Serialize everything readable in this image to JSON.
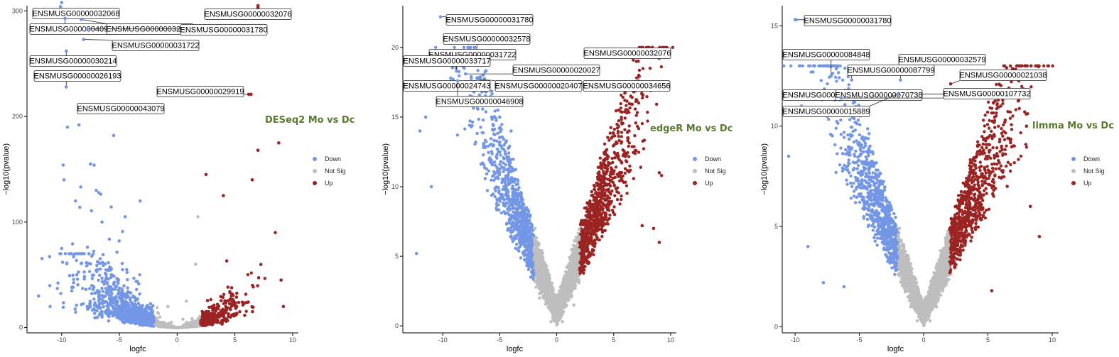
{
  "colors": {
    "Down": "#7397e6",
    "Not Sig": "#bebebe",
    "Up": "#9b2423",
    "title": "#5a7a30"
  },
  "chart_data": [
    {
      "type": "scatter",
      "title": "DESeq2 Mo vs Dc",
      "xlabel": "logfc",
      "ylabel": "−log10(pvalue)",
      "xlim": [
        -13,
        10.5
      ],
      "ylim": [
        -5,
        305
      ],
      "xticks": [
        -10,
        -5,
        0,
        5,
        10
      ],
      "yticks": [
        0,
        100,
        200,
        300
      ],
      "legend": {
        "position": "right",
        "entries": [
          "Down",
          "Not Sig",
          "Up"
        ]
      },
      "grid": false,
      "threshold": 2,
      "points": {
        "Down": [
          [
            -10,
            308
          ],
          [
            -9.5,
            190
          ],
          [
            -8.5,
            192
          ],
          [
            -9.8,
            140
          ],
          [
            -8.8,
            120
          ],
          [
            -7.5,
            155
          ],
          [
            -7,
            130
          ],
          [
            -5.5,
            182
          ],
          [
            -4.6,
            210
          ],
          [
            -4.5,
            105
          ],
          [
            -3.2,
            120
          ],
          [
            -6.5,
            100
          ],
          [
            -10,
            75
          ],
          [
            -12,
            30
          ],
          [
            -11,
            20
          ]
        ],
        "Not Sig": [
          [
            -0.8,
            20
          ],
          [
            0.8,
            25
          ],
          [
            -1.5,
            10
          ],
          [
            1.6,
            60
          ],
          [
            1.8,
            105
          ],
          [
            -0.5,
            5
          ],
          [
            0.5,
            8
          ]
        ],
        "Up": [
          [
            7,
            305
          ],
          [
            6.4,
            221
          ],
          [
            8.8,
            175
          ],
          [
            7,
            168
          ],
          [
            6.5,
            140
          ],
          [
            2.5,
            145
          ],
          [
            4,
            125
          ],
          [
            8.5,
            90
          ],
          [
            9,
            45
          ],
          [
            9.2,
            20
          ]
        ]
      },
      "labels": [
        {
          "text": "ENSMUSG00000032068",
          "x": -10.1,
          "y": 304
        },
        {
          "text": "ENSMUSG00000040950",
          "x": -9.7,
          "y": 293
        },
        {
          "text": "ENSMUSG00000032578",
          "x": -8.3,
          "y": 292
        },
        {
          "text": "ENSMUSG00000031780",
          "x": -7.8,
          "y": 283
        },
        {
          "text": "ENSMUSG00000032076",
          "x": 7,
          "y": 303
        },
        {
          "text": "ENSMUSG00000031722",
          "x": -8.1,
          "y": 273
        },
        {
          "text": "ENSMUSG00000030214",
          "x": -9.6,
          "y": 262
        },
        {
          "text": "ENSMUSG00000026193",
          "x": -9.6,
          "y": 228
        },
        {
          "text": "ENSMUSG00000029919",
          "x": 6.2,
          "y": 221
        },
        {
          "text": "ENSMUSG00000043079",
          "x": -5.7,
          "y": 211
        }
      ]
    },
    {
      "type": "scatter",
      "title": "edgeR Mo vs Dc",
      "xlabel": "logfc",
      "ylabel": "−log10(pvalue)",
      "xlim": [
        -13.5,
        10.5
      ],
      "ylim": [
        -0.5,
        23
      ],
      "xticks": [
        -10,
        -5,
        0,
        5,
        10
      ],
      "yticks": [
        0,
        5,
        10,
        15,
        20
      ],
      "legend": {
        "position": "right",
        "entries": [
          "Down",
          "Not Sig",
          "Up"
        ]
      },
      "grid": false,
      "threshold": 2,
      "points": {
        "Down": [
          [
            -12.3,
            5.2
          ],
          [
            -12,
            14
          ],
          [
            -11,
            10
          ],
          [
            -11.5,
            15
          ],
          [
            -9.5,
            17
          ],
          [
            -7.5,
            16
          ],
          [
            -5,
            15
          ],
          [
            -4,
            14
          ]
        ],
        "Not Sig": [
          [
            -1.5,
            2
          ],
          [
            1.5,
            1.5
          ],
          [
            -0.5,
            0.3
          ],
          [
            0.5,
            0.3
          ]
        ],
        "Up": [
          [
            9.2,
            10.8
          ],
          [
            8.5,
            7
          ],
          [
            7,
            19
          ],
          [
            6.5,
            16.5
          ],
          [
            9,
            11
          ],
          [
            7.5,
            7.2
          ],
          [
            9,
            6
          ]
        ]
      },
      "labels": [
        {
          "text": "ENSMUSG00000031780",
          "x": -10.2,
          "y": 22.2
        },
        {
          "text": "ENSMUSG00000032578",
          "x": -7,
          "y": 19.5
        },
        {
          "text": "ENSMUSG00000031722",
          "x": -8.2,
          "y": 18.6
        },
        {
          "text": "ENSMUSG00000033717",
          "x": -8.8,
          "y": 18.3
        },
        {
          "text": "ENSMUSG00000020027",
          "x": -8,
          "y": 18.1
        },
        {
          "text": "ENSMUSG00000032076",
          "x": 7.2,
          "y": 19.3
        },
        {
          "text": "ENSMUSG00000024743",
          "x": -9.3,
          "y": 17.8
        },
        {
          "text": "ENSMUSG00000020407",
          "x": -6.9,
          "y": 17.7
        },
        {
          "text": "ENSMUSG00000034656",
          "x": 7.2,
          "y": 18
        },
        {
          "text": "ENSMUSG00000046908",
          "x": -8.7,
          "y": 17.6
        }
      ]
    },
    {
      "type": "scatter",
      "title": "limma Mo vs Dc",
      "xlabel": "logfc",
      "ylabel": "−log10(pvalue)",
      "xlim": [
        -11,
        10.5
      ],
      "ylim": [
        -0.3,
        16
      ],
      "xticks": [
        -10,
        -5,
        0,
        5,
        10
      ],
      "yticks": [
        0,
        5,
        10,
        15
      ],
      "legend": {
        "position": "right",
        "entries": [
          "Down",
          "Not Sig",
          "Up"
        ]
      },
      "grid": false,
      "threshold": 2,
      "points": {
        "Down": [
          [
            -10,
            15.3
          ],
          [
            -10.5,
            8.5
          ],
          [
            -9,
            4
          ],
          [
            -7.8,
            2.2
          ],
          [
            -6.2,
            2
          ],
          [
            -8.5,
            11.5
          ],
          [
            -9.5,
            11
          ]
        ],
        "Not Sig": [
          [
            -1,
            1
          ],
          [
            1,
            1
          ],
          [
            -0.5,
            0.3
          ],
          [
            0.5,
            0.3
          ]
        ],
        "Up": [
          [
            9,
            4.5
          ],
          [
            8.3,
            6
          ],
          [
            6.5,
            7
          ],
          [
            5.8,
            11.3
          ],
          [
            5.3,
            1.8
          ],
          [
            6,
            11
          ],
          [
            8,
            10
          ]
        ]
      },
      "labels": [
        {
          "text": "ENSMUSG00000031780",
          "x": -9.9,
          "y": 15.3
        },
        {
          "text": "ENSMUSG00000084848",
          "x": -7.2,
          "y": 12.5
        },
        {
          "text": "ENSMUSG00000032579",
          "x": -1.8,
          "y": 12.3
        },
        {
          "text": "ENSMUSG00000087799",
          "x": -5.6,
          "y": 12.3
        },
        {
          "text": "ENSMUSG00000021038",
          "x": 2.1,
          "y": 12.1
        },
        {
          "text": "ENSMUSG00000026018",
          "x": -3.8,
          "y": 11.7
        },
        {
          "text": "ENSMUSG00000070738",
          "x": 2.1,
          "y": 11.6
        },
        {
          "text": "ENSMUSG00000107732",
          "x": -6.4,
          "y": 11.4
        },
        {
          "text": "ENSMUSG00000015889",
          "x": -2,
          "y": 11.6
        }
      ]
    }
  ]
}
